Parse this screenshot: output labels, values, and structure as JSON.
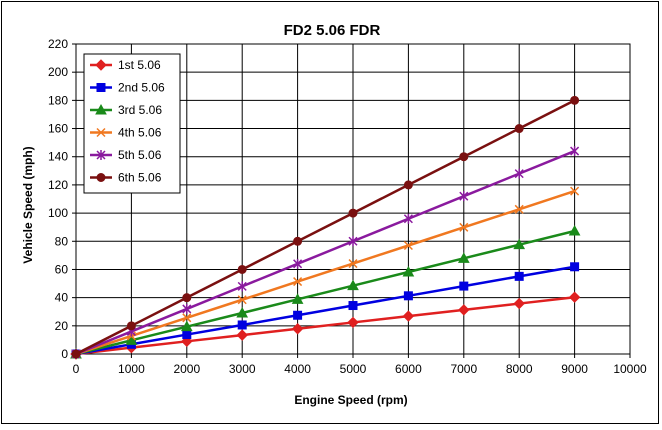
{
  "chart_data": {
    "type": "line",
    "title": "FD2 5.06 FDR",
    "xlabel": "Engine Speed (rpm)",
    "ylabel": "Vehicle Speed (mph)",
    "xlim": [
      0,
      10000
    ],
    "ylim": [
      0,
      220
    ],
    "xticks": [
      0,
      1000,
      2000,
      3000,
      4000,
      5000,
      6000,
      7000,
      8000,
      9000,
      10000
    ],
    "yticks": [
      0,
      20,
      40,
      60,
      80,
      100,
      120,
      140,
      160,
      180,
      200,
      220
    ],
    "grid": true,
    "legend_position": "top-left",
    "x": [
      0,
      1000,
      2000,
      3000,
      4000,
      5000,
      6000,
      7000,
      8000,
      9000
    ],
    "series": [
      {
        "name": "1st 5.06",
        "color": "#e02020",
        "marker": "diamond",
        "values": [
          0,
          4.5,
          9,
          13.4,
          17.9,
          22.4,
          26.9,
          31.3,
          35.8,
          40.3
        ]
      },
      {
        "name": "2nd 5.06",
        "color": "#0000e0",
        "marker": "square",
        "values": [
          0,
          6.9,
          13.8,
          20.6,
          27.5,
          34.4,
          41.3,
          48.2,
          55.1,
          61.9
        ]
      },
      {
        "name": "3rd 5.06",
        "color": "#1a8a1a",
        "marker": "triangle",
        "values": [
          0,
          9.7,
          19.4,
          29.1,
          38.8,
          48.5,
          58.2,
          67.9,
          77.6,
          87.3
        ]
      },
      {
        "name": "4th 5.06",
        "color": "#f07820",
        "marker": "x",
        "values": [
          0,
          12.8,
          25.7,
          38.5,
          51.4,
          64.2,
          77.0,
          89.9,
          102.7,
          115.6
        ]
      },
      {
        "name": "5th 5.06",
        "color": "#8a1a9e",
        "marker": "star",
        "values": [
          0,
          16.0,
          32.0,
          48.0,
          64.0,
          80.0,
          96.0,
          112.0,
          128.0,
          144.0
        ]
      },
      {
        "name": "6th 5.06",
        "color": "#7a1010",
        "marker": "circle",
        "values": [
          0,
          20.0,
          40.0,
          60.0,
          80.0,
          100.0,
          120.0,
          140.0,
          160.0,
          180.0
        ]
      }
    ]
  }
}
